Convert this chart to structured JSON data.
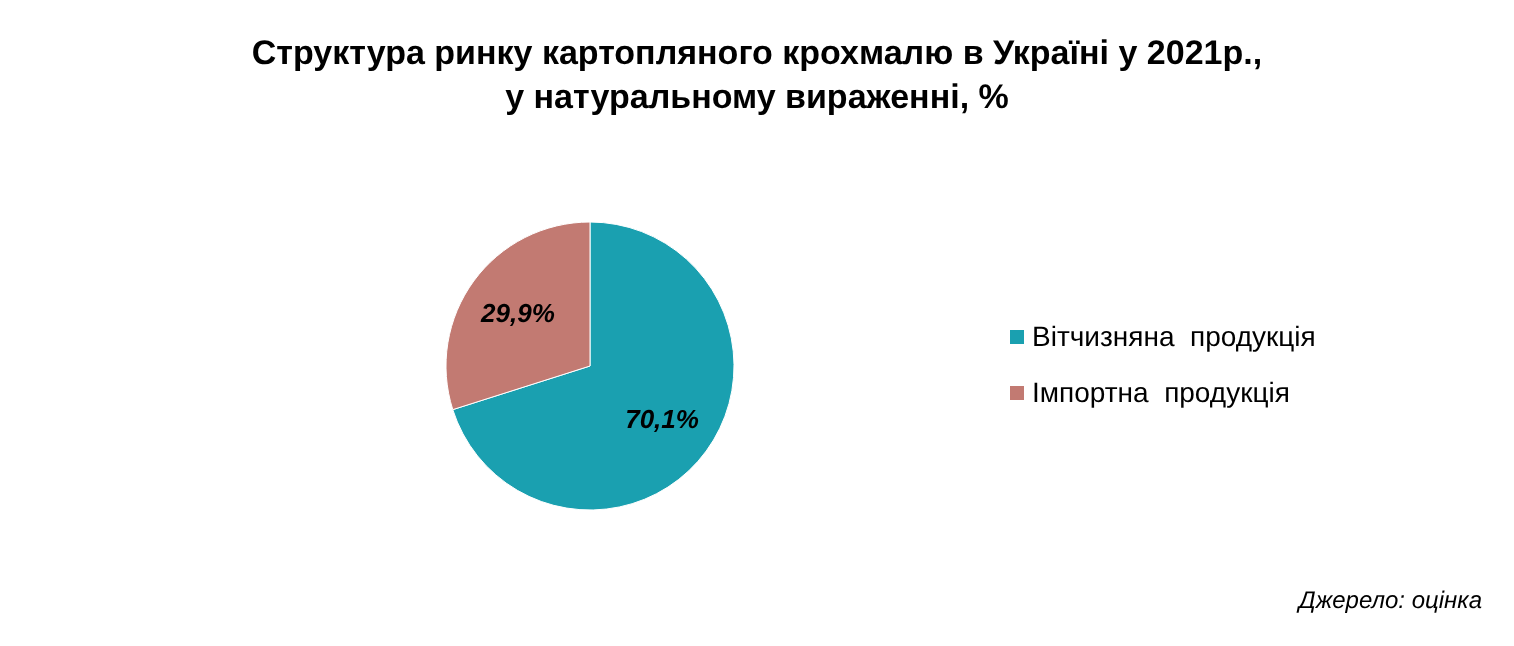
{
  "chart_data": {
    "type": "pie",
    "title": "Структура ринку картопляного крохмалю в Україні у 2021р.,\nу натуральному вираженні, %",
    "categories": [
      "Вітчизняна  продукція",
      "Імпортна  продукція"
    ],
    "values": [
      70.1,
      29.9
    ],
    "value_labels": [
      "70,1%",
      "29,9%"
    ],
    "colors": [
      "#1aa0b0",
      "#c27a72"
    ],
    "legend": "right",
    "annotations": [
      "Джерело: оцінка"
    ]
  }
}
